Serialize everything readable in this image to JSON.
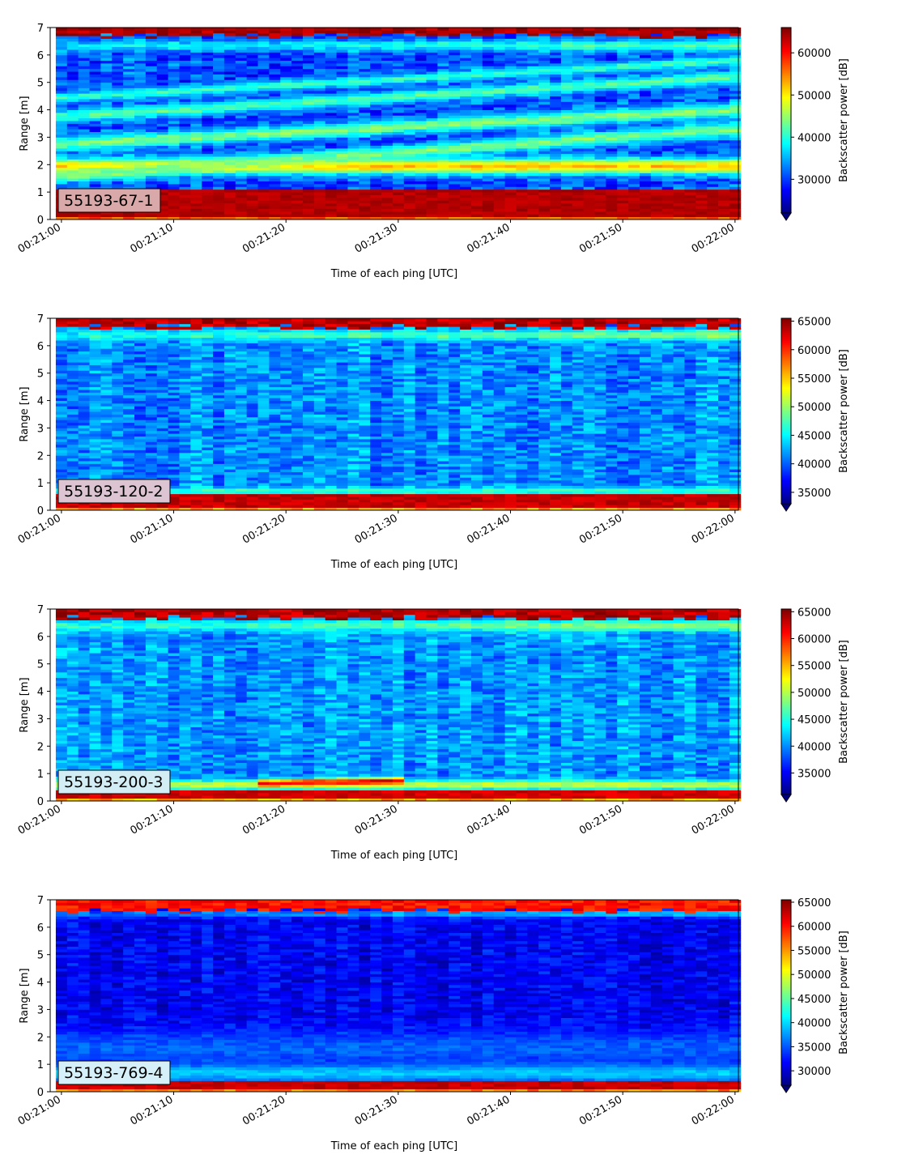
{
  "figure": {
    "colormap": "jet",
    "under_color": "#00007f"
  },
  "chart_data": [
    {
      "type": "heatmap",
      "label": "55193-67-1",
      "label_bg": "#d9a8a8",
      "xlabel": "Time of each ping [UTC]",
      "ylabel": "Range [m]",
      "xticks": [
        "00:21:00",
        "00:21:10",
        "00:21:20",
        "00:21:30",
        "00:21:40",
        "00:21:50",
        "00:22:00"
      ],
      "yticks": [
        "0",
        "1",
        "2",
        "3",
        "4",
        "5",
        "6",
        "7"
      ],
      "xlim_seconds": [
        -1,
        60.3
      ],
      "ylim": [
        0,
        7
      ],
      "colorbar": {
        "label": "Backscatter power [dB]",
        "min": 22000,
        "max": 66000,
        "ticks": [
          30000,
          40000,
          50000,
          60000
        ],
        "tick_labels": [
          "30000",
          "40000",
          "50000",
          "60000"
        ]
      },
      "features": {
        "base": 31000,
        "noise": 4500,
        "bottom_band": [
          0.15,
          1.15,
          65000
        ],
        "top_band": [
          6.72,
          7.0,
          66000
        ],
        "layers": [
          {
            "y0": 1.95,
            "y1": 1.95,
            "width": 0.28,
            "value": 52000
          },
          {
            "y0": 3.75,
            "y1": 5.2,
            "width": 0.22,
            "value": 42000
          },
          {
            "y0": 4.45,
            "y1": 5.8,
            "width": 0.18,
            "value": 41000
          },
          {
            "y0": 2.75,
            "y1": 4.0,
            "width": 0.25,
            "value": 44000
          },
          {
            "y0": 1.6,
            "y1": 3.3,
            "width": 0.25,
            "value": 44000
          }
        ],
        "surface_glow": [
          6.35,
          0.2,
          50000,
          0.6
        ]
      }
    },
    {
      "type": "heatmap",
      "label": "55193-120-2",
      "label_bg": "#dcc4d2",
      "xlabel": "Time of each ping [UTC]",
      "ylabel": "Range [m]",
      "xticks": [
        "00:21:00",
        "00:21:10",
        "00:21:20",
        "00:21:30",
        "00:21:40",
        "00:21:50",
        "00:22:00"
      ],
      "yticks": [
        "0",
        "1",
        "2",
        "3",
        "4",
        "5",
        "6",
        "7"
      ],
      "xlim_seconds": [
        -1,
        60.3
      ],
      "ylim": [
        0,
        7
      ],
      "colorbar": {
        "label": "Backscatter power [dB]",
        "min": 33000,
        "max": 65500,
        "ticks": [
          35000,
          40000,
          45000,
          50000,
          55000,
          60000,
          65000
        ],
        "tick_labels": [
          "35000",
          "40000",
          "45000",
          "50000",
          "55000",
          "60000",
          "65000"
        ]
      },
      "features": {
        "base": 41500,
        "noise": 3200,
        "bottom_band": [
          0.12,
          0.55,
          64500
        ],
        "top_band": [
          6.68,
          7.0,
          65500
        ],
        "layers": [
          {
            "y0": 0.72,
            "y1": 0.72,
            "width": 0.12,
            "value": 47000
          }
        ],
        "surface_glow": [
          6.4,
          0.18,
          55000,
          0.6
        ]
      }
    },
    {
      "type": "heatmap",
      "label": "55193-200-3",
      "label_bg": "#d2eef4",
      "xlabel": "Time of each ping [UTC]",
      "ylabel": "Range [m]",
      "xticks": [
        "00:21:00",
        "00:21:10",
        "00:21:20",
        "00:21:30",
        "00:21:40",
        "00:21:50",
        "00:22:00"
      ],
      "yticks": [
        "0",
        "1",
        "2",
        "3",
        "4",
        "5",
        "6",
        "7"
      ],
      "xlim_seconds": [
        -1,
        60.3
      ],
      "ylim": [
        0,
        7
      ],
      "colorbar": {
        "label": "Backscatter power [dB]",
        "min": 31000,
        "max": 65500,
        "ticks": [
          35000,
          40000,
          45000,
          50000,
          55000,
          60000,
          65000
        ],
        "tick_labels": [
          "35000",
          "40000",
          "45000",
          "50000",
          "55000",
          "60000",
          "65000"
        ]
      },
      "features": {
        "base": 40500,
        "noise": 3200,
        "bottom_band": [
          0.12,
          0.4,
          64000
        ],
        "top_band": [
          6.68,
          7.0,
          65500
        ],
        "layers": [
          {
            "y0": 0.6,
            "y1": 0.6,
            "width": 0.15,
            "value": 51000
          },
          {
            "y0": 0.5,
            "y1": 1.0,
            "width": 0.12,
            "value": 62000,
            "x0": 18,
            "x1": 30
          }
        ],
        "surface_glow": [
          6.4,
          0.2,
          55000,
          0.6
        ]
      }
    },
    {
      "type": "heatmap",
      "label": "55193-769-4",
      "label_bg": "#d5f0f8",
      "xlabel": "Time of each ping [UTC]",
      "ylabel": "Range [m]",
      "xticks": [
        "00:21:00",
        "00:21:10",
        "00:21:20",
        "00:21:30",
        "00:21:40",
        "00:21:50",
        "00:22:00"
      ],
      "yticks": [
        "0",
        "1",
        "2",
        "3",
        "4",
        "5",
        "6",
        "7"
      ],
      "xlim_seconds": [
        -1,
        60.3
      ],
      "ylim": [
        0,
        7
      ],
      "colorbar": {
        "label": "Backscatter power [dB]",
        "min": 27000,
        "max": 65500,
        "ticks": [
          30000,
          35000,
          40000,
          45000,
          50000,
          55000,
          60000,
          65000
        ],
        "tick_labels": [
          "30000",
          "35000",
          "40000",
          "45000",
          "50000",
          "55000",
          "60000",
          "65000"
        ]
      },
      "features": {
        "base": 31500,
        "noise": 2800,
        "bottom_band": [
          0.15,
          0.4,
          64000
        ],
        "top_band": [
          6.6,
          7.0,
          62000
        ],
        "layers": [
          {
            "y0": 0.7,
            "y1": 0.7,
            "width": 0.35,
            "value": 40000
          },
          {
            "y0": 1.6,
            "y1": 1.6,
            "width": 0.6,
            "value": 35500
          }
        ],
        "surface_glow": [
          6.5,
          0.12,
          50000,
          0.5
        ]
      }
    }
  ]
}
